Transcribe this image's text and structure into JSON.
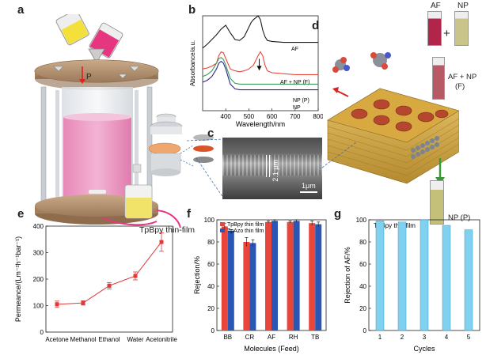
{
  "panels": {
    "a": {
      "label": "a",
      "pressure_label": "P"
    },
    "b": {
      "label": "b"
    },
    "c": {
      "label": "c",
      "thickness_label": "2.1 μm",
      "scalebar_label": "1μm"
    },
    "d": {
      "label": "d",
      "vial_labels": [
        "AF",
        "NP"
      ],
      "plus": "+",
      "mixed_label_1": "AF + NP",
      "mixed_label_2": "(F)",
      "permeate_label": "NP (P)"
    },
    "e": {
      "label": "e"
    },
    "f": {
      "label": "f"
    },
    "g": {
      "label": "g"
    }
  },
  "film_caption": "TpBpy thin-film",
  "colors": {
    "red_series": "#e8463a",
    "blue_series": "#2a56b4",
    "cyan_bar": "#7fd1ef",
    "line_e": "#e03a3a"
  },
  "chart_data": [
    {
      "id": "b",
      "type": "line",
      "xlabel": "Wavelength/nm",
      "ylabel": "Absorbance/a.u.",
      "xlim": [
        300,
        800
      ],
      "xticks": [
        400,
        500,
        600,
        700,
        800
      ],
      "series": [
        {
          "name": "AF",
          "color": "#1a1a1a",
          "x": [
            300,
            320,
            340,
            360,
            380,
            400,
            420,
            440,
            460,
            480,
            500,
            510,
            520,
            530,
            540,
            550,
            560,
            570,
            580,
            600,
            650,
            700,
            750,
            800
          ],
          "y": [
            0.66,
            0.7,
            0.75,
            0.8,
            0.86,
            0.9,
            0.82,
            0.75,
            0.74,
            0.78,
            0.88,
            0.93,
            0.96,
            0.98,
            1.0,
            0.96,
            0.85,
            0.78,
            0.74,
            0.73,
            0.72,
            0.72,
            0.72,
            0.72
          ]
        },
        {
          "name": "AF + NP (F)",
          "color": "#e8463a",
          "x": [
            300,
            320,
            340,
            360,
            370,
            380,
            390,
            400,
            420,
            440,
            460,
            480,
            500,
            520,
            540,
            550,
            560,
            570,
            580,
            600,
            650,
            700,
            750,
            800
          ],
          "y": [
            0.44,
            0.45,
            0.47,
            0.5,
            0.58,
            0.62,
            0.61,
            0.55,
            0.44,
            0.42,
            0.41,
            0.42,
            0.44,
            0.48,
            0.58,
            0.62,
            0.58,
            0.48,
            0.42,
            0.4,
            0.39,
            0.38,
            0.38,
            0.38
          ]
        },
        {
          "name": "NP (P)",
          "color": "#3a9a5a",
          "x": [
            300,
            320,
            340,
            360,
            370,
            380,
            390,
            400,
            420,
            440,
            460,
            480,
            500,
            550,
            600,
            650,
            700,
            750,
            800
          ],
          "y": [
            0.36,
            0.38,
            0.42,
            0.5,
            0.55,
            0.56,
            0.54,
            0.48,
            0.34,
            0.29,
            0.28,
            0.28,
            0.28,
            0.28,
            0.28,
            0.28,
            0.28,
            0.28,
            0.28
          ]
        },
        {
          "name": "NP",
          "color": "#2b2b8a",
          "x": [
            300,
            320,
            340,
            360,
            370,
            380,
            390,
            400,
            420,
            440,
            460,
            480,
            500,
            550,
            600,
            650,
            700,
            750,
            800
          ],
          "y": [
            0.3,
            0.32,
            0.36,
            0.44,
            0.5,
            0.52,
            0.5,
            0.44,
            0.28,
            0.23,
            0.22,
            0.22,
            0.22,
            0.22,
            0.22,
            0.22,
            0.22,
            0.22,
            0.22
          ]
        }
      ],
      "annotations": [
        "AF",
        "AF + NP (F)",
        "NP (P)",
        "NP"
      ]
    },
    {
      "id": "e",
      "type": "line",
      "categories": [
        "Acetone",
        "Methanol",
        "Ethanol",
        "Water",
        "Acetonitrile"
      ],
      "values": [
        105,
        110,
        175,
        212,
        340
      ],
      "errors": [
        12,
        8,
        12,
        15,
        35
      ],
      "ylabel": "Permeance/(Lm⁻²h⁻¹bar⁻¹)",
      "ylim": [
        0,
        400
      ],
      "yticks": [
        0,
        100,
        200,
        300,
        400
      ]
    },
    {
      "id": "f",
      "type": "bar",
      "categories": [
        "BB",
        "CR",
        "AF",
        "RH",
        "TB"
      ],
      "series": [
        {
          "name": "TpBpy thin film",
          "values": [
            94,
            80,
            98,
            98,
            97
          ],
          "errors": [
            3,
            4,
            1,
            1,
            2
          ]
        },
        {
          "name": "TpAzo thin film",
          "values": [
            90,
            79,
            99,
            99,
            96
          ],
          "errors": [
            1,
            3,
            1,
            1,
            2
          ]
        }
      ],
      "xlabel": "Molecules (Feed)",
      "ylabel": "Rejection/%",
      "ylim": [
        0,
        100
      ],
      "yticks": [
        0,
        20,
        40,
        60,
        80,
        100
      ]
    },
    {
      "id": "g",
      "type": "bar",
      "title": "TpBpy thin film",
      "categories": [
        "1",
        "2",
        "3",
        "4",
        "5"
      ],
      "values": [
        99,
        98,
        100,
        95,
        91
      ],
      "xlabel": "Cycles",
      "ylabel": "Rejection of AF/%",
      "ylim": [
        0,
        100
      ],
      "yticks": [
        0,
        20,
        40,
        60,
        80,
        100
      ]
    }
  ]
}
